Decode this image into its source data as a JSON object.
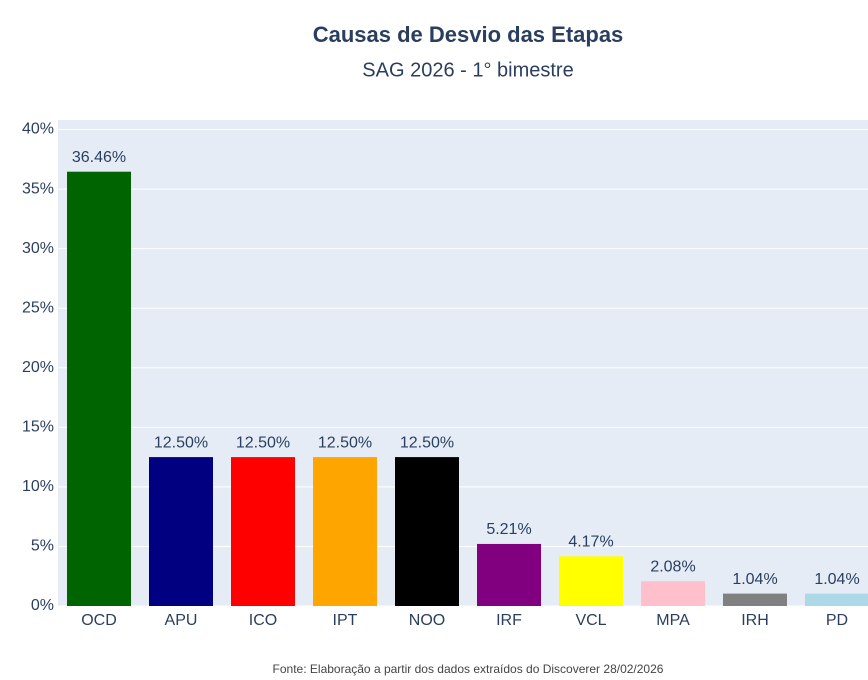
{
  "chart_data": {
    "type": "bar",
    "title": "Causas de Desvio das Etapas",
    "subtitle": "SAG 2026 - 1° bimestre",
    "annotation": "Fonte: Elaboração a partir dos dados extraídos do Discoverer 28/02/2026",
    "categories": [
      "OCD",
      "APU",
      "ICO",
      "IPT",
      "NOO",
      "IRF",
      "VCL",
      "MPA",
      "IRH",
      "PD"
    ],
    "values": [
      36.46,
      12.5,
      12.5,
      12.5,
      12.5,
      5.21,
      4.17,
      2.08,
      1.04,
      1.04
    ],
    "value_labels": [
      "36.46%",
      "12.50%",
      "12.50%",
      "12.50%",
      "12.50%",
      "5.21%",
      "4.17%",
      "2.08%",
      "1.04%",
      "1.04%"
    ],
    "colors": [
      "#006400",
      "#000080",
      "#ff0000",
      "#ffa500",
      "#000000",
      "#800080",
      "#ffff00",
      "#ffc0cb",
      "#808080",
      "#add8e6"
    ],
    "ylim": [
      0,
      40.8
    ],
    "yticks": [
      {
        "value": 0,
        "label": "0%"
      },
      {
        "value": 5,
        "label": "5%"
      },
      {
        "value": 10,
        "label": "10%"
      },
      {
        "value": 15,
        "label": "15%"
      },
      {
        "value": 20,
        "label": "20%"
      },
      {
        "value": 25,
        "label": "25%"
      },
      {
        "value": 30,
        "label": "30%"
      },
      {
        "value": 35,
        "label": "35%"
      },
      {
        "value": 40,
        "label": "40%"
      }
    ],
    "grid": true
  }
}
